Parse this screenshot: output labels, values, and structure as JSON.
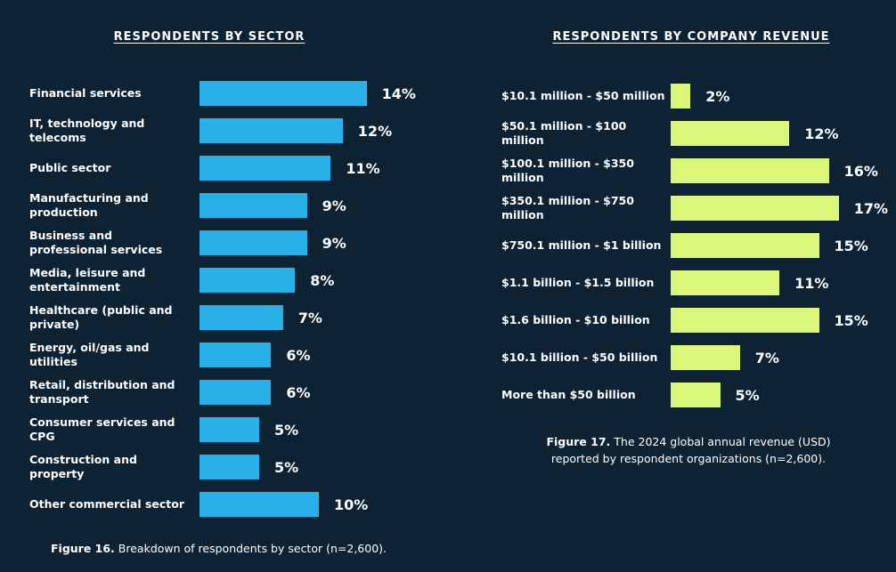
{
  "chart_data": [
    {
      "type": "bar",
      "orientation": "horizontal",
      "title": "RESPONDENTS BY SECTOR",
      "categories": [
        "Financial services",
        "IT, technology and telecoms",
        "Public sector",
        "Manufacturing and production",
        "Business and professional services",
        "Media, leisure and entertainment",
        "Healthcare (public and private)",
        "Energy, oil/gas and utilities",
        "Retail, distribution and transport",
        "Consumer services and CPG",
        "Construction and property",
        "Other commercial sector"
      ],
      "values": [
        14,
        12,
        11,
        9,
        9,
        8,
        7,
        6,
        6,
        5,
        5,
        10
      ],
      "value_labels": [
        "14%",
        "12%",
        "11%",
        "9%",
        "9%",
        "8%",
        "7%",
        "6%",
        "6%",
        "5%",
        "5%",
        "10%"
      ],
      "color": "#29b1e8",
      "caption_label": "Figure 16.",
      "caption": "Breakdown of respondents by sector (n=2,600)."
    },
    {
      "type": "bar",
      "orientation": "horizontal",
      "title": "RESPONDENTS BY COMPANY REVENUE",
      "categories": [
        "$10.1 million - $50 million",
        "$50.1 million - $100 million",
        "$100.1 million - $350 million",
        "$350.1 million - $750 million",
        "$750.1 million - $1 billion",
        "$1.1 billion - $1.5 billion",
        "$1.6 billion - $10 billion",
        "$10.1 billion - $50 billion",
        "More than $50 billion"
      ],
      "values": [
        2,
        12,
        16,
        17,
        15,
        11,
        15,
        7,
        5
      ],
      "value_labels": [
        "2%",
        "12%",
        "16%",
        "17%",
        "15%",
        "11%",
        "15%",
        "7%",
        "5%"
      ],
      "color": "#dbf77a",
      "caption_label": "Figure 17.",
      "caption": "The 2024 global annual revenue (USD) reported by respondent organizations (n=2,600)."
    }
  ]
}
